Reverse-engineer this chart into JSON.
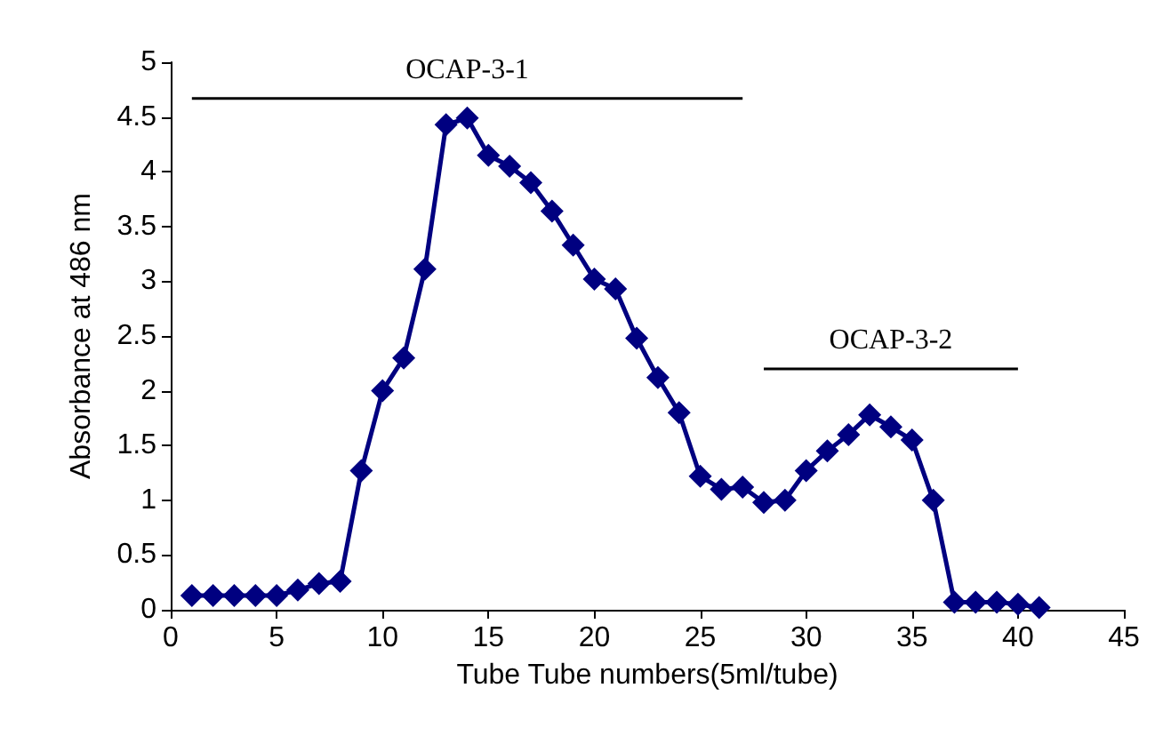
{
  "chart_data": {
    "type": "line",
    "xlabel": "Tube Tube numbers(5ml/tube)",
    "ylabel": "Absorbance at 486 nm",
    "x": [
      1,
      2,
      3,
      4,
      5,
      6,
      7,
      8,
      9,
      10,
      11,
      12,
      13,
      14,
      15,
      16,
      17,
      18,
      19,
      20,
      21,
      22,
      23,
      24,
      25,
      26,
      27,
      28,
      29,
      30,
      31,
      32,
      33,
      34,
      35,
      36,
      37,
      38,
      39,
      40,
      41
    ],
    "series": [
      {
        "color": "#000080",
        "values": [
          0.13,
          0.13,
          0.13,
          0.13,
          0.13,
          0.18,
          0.24,
          0.26,
          1.27,
          2.0,
          2.3,
          3.11,
          4.43,
          4.49,
          4.15,
          4.05,
          3.9,
          3.64,
          3.33,
          3.02,
          2.93,
          2.48,
          2.12,
          1.8,
          1.22,
          1.1,
          1.12,
          0.98,
          1.0,
          1.27,
          1.45,
          1.6,
          1.78,
          1.67,
          1.55,
          1.0,
          0.07,
          0.07,
          0.07,
          0.05,
          0.02
        ]
      },
      {
        "color": "#000000",
        "x": [
          1,
          27
        ],
        "values": [
          4.67,
          4.67
        ],
        "marker": "none"
      },
      {
        "color": "#000000",
        "x": [
          28,
          40
        ],
        "values": [
          2.2,
          2.2
        ],
        "marker": "none"
      }
    ],
    "xlim": [
      0,
      45
    ],
    "xticks": [
      0,
      5,
      10,
      15,
      20,
      25,
      30,
      35,
      40,
      45
    ],
    "ylim": [
      0,
      5
    ],
    "yticks": [
      0,
      0.5,
      1,
      1.5,
      2,
      2.5,
      3,
      3.5,
      4,
      4.5,
      5
    ],
    "annotations": [
      {
        "text": "OCAP-3-1",
        "x": 14,
        "y": 4.67
      },
      {
        "text": "OCAP-3-2",
        "x": 34,
        "y": 2.2
      }
    ],
    "grid": false,
    "marker": "diamond",
    "line_style": "solid"
  }
}
